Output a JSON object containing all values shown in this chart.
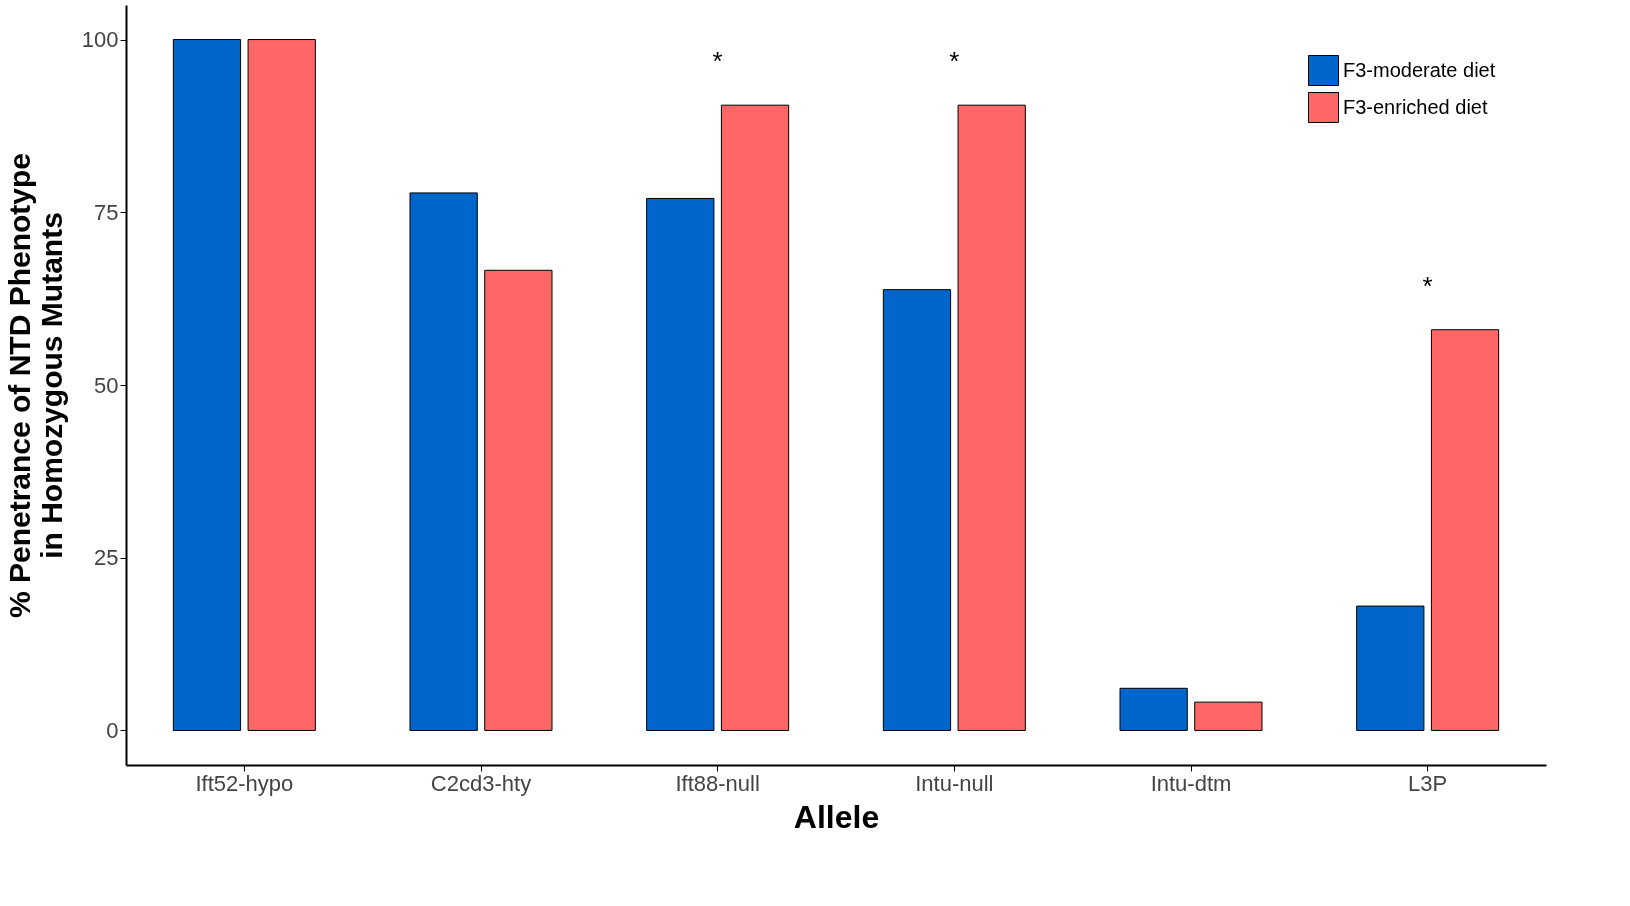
{
  "chart_data": {
    "type": "bar",
    "xlabel": "Allele",
    "ylabel": "% Penetrance of NTD Phenotype\nin Homozygous Mutants",
    "categories": [
      "Ift52-hypo",
      "C2cd3-hty",
      "Ift88-null",
      "Intu-null",
      "Intu-dtm",
      "L3P"
    ],
    "series": [
      {
        "name": "F3-moderate diet",
        "color": "#0066cc",
        "values": [
          100,
          77.8,
          77,
          63.8,
          6.1,
          18
        ]
      },
      {
        "name": "F3-enriched diet",
        "color": "#ff6666",
        "values": [
          100,
          66.6,
          90.5,
          90.5,
          4.1,
          58
        ]
      }
    ],
    "ylim": [
      -5,
      105
    ],
    "yticks": [
      0,
      25,
      50,
      75,
      100
    ],
    "grid": false,
    "legend": "top right",
    "annotations": [
      {
        "text": "*",
        "x": "Ift88-null",
        "y": 90.5
      },
      {
        "text": "*",
        "x": "Intu-null",
        "y": 90.5
      },
      {
        "text": "*",
        "x": "L3P",
        "y": 58
      }
    ]
  }
}
